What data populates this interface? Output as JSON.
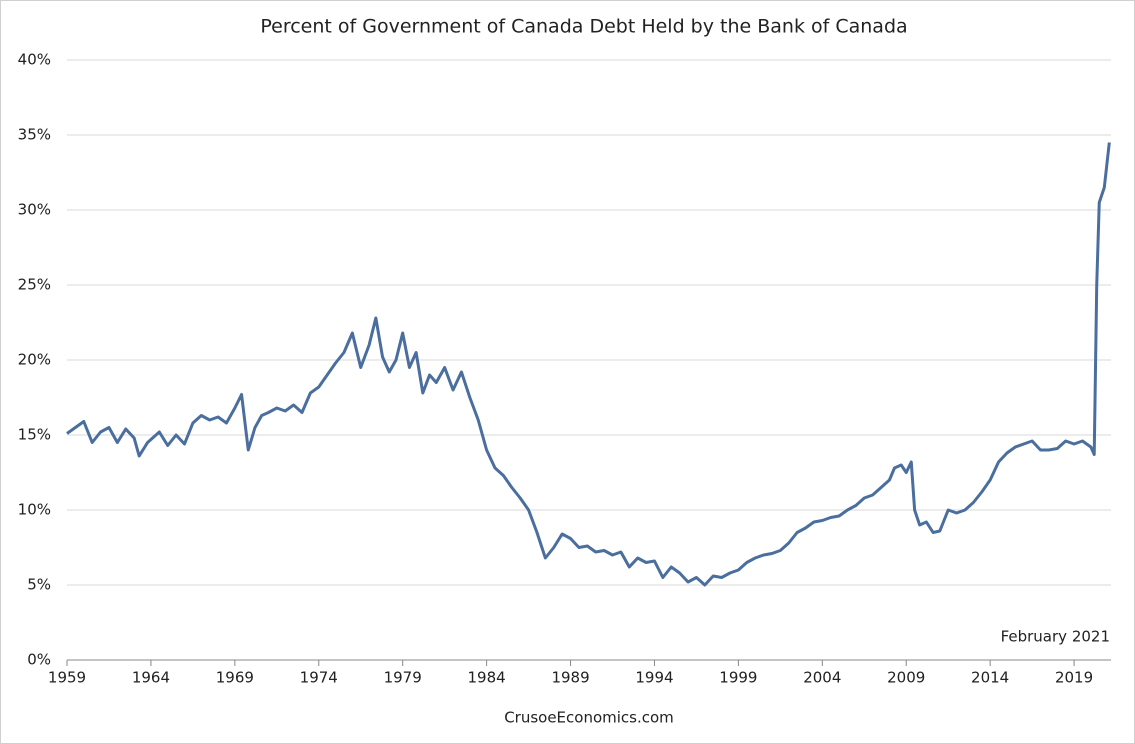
{
  "chart_data": {
    "type": "line",
    "title": "Percent of Government of Canada Debt Held by the Bank of Canada",
    "annotation": "February 2021",
    "source": "CrusoeEconomics.com",
    "xlim": [
      1959,
      2021.2
    ],
    "xticks": [
      1959,
      1964,
      1969,
      1974,
      1979,
      1984,
      1989,
      1994,
      1999,
      2004,
      2009,
      2014,
      2019
    ],
    "ylim": [
      0,
      40
    ],
    "yticks": [
      {
        "value": 0,
        "label": "0%"
      },
      {
        "value": 5,
        "label": "5%"
      },
      {
        "value": 10,
        "label": "10%"
      },
      {
        "value": 15,
        "label": "15%"
      },
      {
        "value": 20,
        "label": "20%"
      },
      {
        "value": 25,
        "label": "25%"
      },
      {
        "value": 30,
        "label": "30%"
      },
      {
        "value": 35,
        "label": "35%"
      },
      {
        "value": 40,
        "label": "40%"
      }
    ],
    "grid": true,
    "color": "#4a6e9e",
    "x": [
      1959.0,
      1959.5,
      1960.0,
      1960.5,
      1961.0,
      1961.5,
      1962.0,
      1962.5,
      1963.0,
      1963.3,
      1963.8,
      1964.5,
      1965.0,
      1965.5,
      1966.0,
      1966.5,
      1967.0,
      1967.5,
      1968.0,
      1968.5,
      1969.0,
      1969.4,
      1969.8,
      1970.2,
      1970.6,
      1971.0,
      1971.5,
      1972.0,
      1972.5,
      1973.0,
      1973.5,
      1974.0,
      1974.5,
      1975.0,
      1975.5,
      1976.0,
      1976.5,
      1977.0,
      1977.4,
      1977.8,
      1978.2,
      1978.6,
      1979.0,
      1979.4,
      1979.8,
      1980.2,
      1980.6,
      1981.0,
      1981.5,
      1982.0,
      1982.5,
      1983.0,
      1983.5,
      1984.0,
      1984.5,
      1985.0,
      1985.5,
      1986.0,
      1986.5,
      1987.0,
      1987.5,
      1988.0,
      1988.5,
      1989.0,
      1989.5,
      1990.0,
      1990.5,
      1991.0,
      1991.5,
      1992.0,
      1992.5,
      1993.0,
      1993.5,
      1994.0,
      1994.5,
      1995.0,
      1995.5,
      1996.0,
      1996.5,
      1997.0,
      1997.5,
      1998.0,
      1998.5,
      1999.0,
      1999.5,
      2000.0,
      2000.5,
      2001.0,
      2001.5,
      2002.0,
      2002.5,
      2003.0,
      2003.5,
      2004.0,
      2004.5,
      2005.0,
      2005.5,
      2006.0,
      2006.5,
      2007.0,
      2007.5,
      2008.0,
      2008.3,
      2008.7,
      2009.0,
      2009.3,
      2009.5,
      2009.8,
      2010.2,
      2010.6,
      2011.0,
      2011.5,
      2012.0,
      2012.5,
      2013.0,
      2013.5,
      2014.0,
      2014.5,
      2015.0,
      2015.5,
      2016.0,
      2016.5,
      2017.0,
      2017.5,
      2018.0,
      2018.5,
      2019.0,
      2019.5,
      2020.0,
      2020.2,
      2020.35,
      2020.5,
      2020.8,
      2021.0,
      2021.1
    ],
    "values": [
      15.1,
      15.5,
      15.9,
      14.5,
      15.2,
      15.5,
      14.5,
      15.4,
      14.8,
      13.6,
      14.5,
      15.2,
      14.3,
      15.0,
      14.4,
      15.8,
      16.3,
      16.0,
      16.2,
      15.8,
      16.8,
      17.7,
      14.0,
      15.5,
      16.3,
      16.5,
      16.8,
      16.6,
      17.0,
      16.5,
      17.8,
      18.2,
      19.0,
      19.8,
      20.5,
      21.8,
      19.5,
      21.0,
      22.8,
      20.2,
      19.2,
      20.0,
      21.8,
      19.5,
      20.5,
      17.8,
      19.0,
      18.5,
      19.5,
      18.0,
      19.2,
      17.5,
      16.0,
      14.0,
      12.8,
      12.3,
      11.5,
      10.8,
      10.0,
      8.5,
      6.8,
      7.5,
      8.4,
      8.1,
      7.5,
      7.6,
      7.2,
      7.3,
      7.0,
      7.2,
      6.2,
      6.8,
      6.5,
      6.6,
      5.5,
      6.2,
      5.8,
      5.2,
      5.5,
      5.0,
      5.6,
      5.5,
      5.8,
      6.0,
      6.5,
      6.8,
      7.0,
      7.1,
      7.3,
      7.8,
      8.5,
      8.8,
      9.2,
      9.3,
      9.5,
      9.6,
      10.0,
      10.3,
      10.8,
      11.0,
      11.5,
      12.0,
      12.8,
      13.0,
      12.5,
      13.2,
      10.0,
      9.0,
      9.2,
      8.5,
      8.6,
      10.0,
      9.8,
      10.0,
      10.5,
      11.2,
      12.0,
      13.2,
      13.8,
      14.2,
      14.4,
      14.6,
      14.0,
      14.0,
      14.1,
      14.6,
      14.4,
      14.6,
      14.2,
      13.7,
      25.0,
      30.5,
      31.5,
      33.5,
      34.5
    ]
  }
}
